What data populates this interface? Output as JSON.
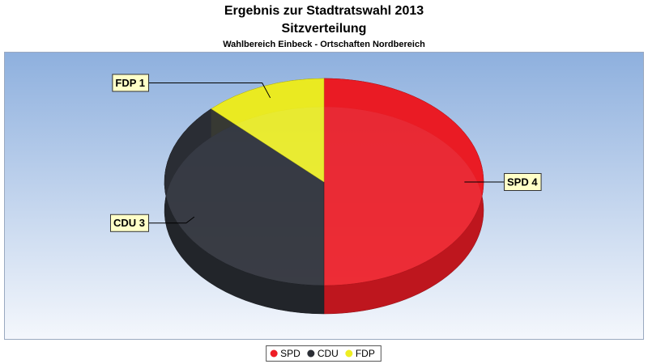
{
  "chart_data": {
    "type": "pie",
    "title": "Ergebnis zur Stadtratswahl 2013",
    "subtitle": "Sitzverteilung",
    "caption": "Wahlbereich Einbeck - Ortschaften Nordbereich",
    "categories": [
      "SPD",
      "CDU",
      "FDP"
    ],
    "values": [
      4,
      3,
      1
    ],
    "value_labels": [
      "SPD 4",
      "CDU 3",
      "FDP 1"
    ],
    "colors": [
      "#ee1c25",
      "#2b2e35",
      "#eeee22"
    ],
    "legend": "bottom"
  }
}
